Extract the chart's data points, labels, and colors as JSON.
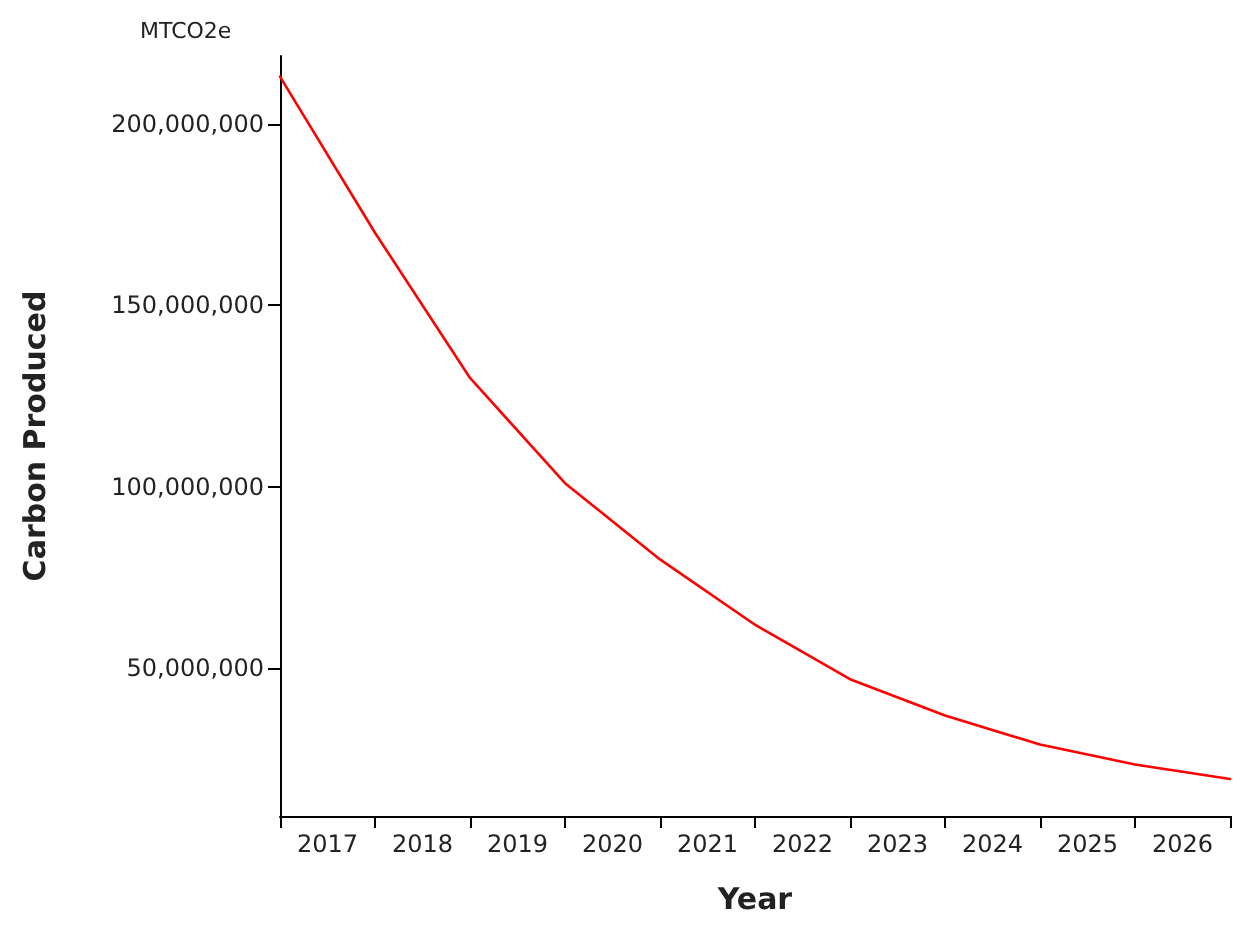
{
  "chart_data": {
    "type": "line",
    "xlabel": "Year",
    "ylabel": "Carbon Produced",
    "annotations": [
      "MTCO2e"
    ],
    "x": [
      2017,
      2018,
      2019,
      2020,
      2021,
      2022,
      2023,
      2024,
      2025,
      2026,
      2027
    ],
    "series": [
      {
        "color": "#ff0000",
        "values": [
          213000000,
          170000000,
          130000000,
          101000000,
          80000000,
          62000000,
          47000000,
          37000000,
          29000000,
          23500000,
          19500000
        ]
      }
    ],
    "xlim": [
      2017,
      2027
    ],
    "xticks": [
      {
        "value": 2017,
        "label": null
      },
      {
        "value": 2017.5,
        "label": "2017"
      },
      {
        "value": 2018,
        "label": null
      },
      {
        "value": 2018.5,
        "label": "2018"
      },
      {
        "value": 2019,
        "label": null
      },
      {
        "value": 2019.5,
        "label": "2019"
      },
      {
        "value": 2020,
        "label": null
      },
      {
        "value": 2020.5,
        "label": "2020"
      },
      {
        "value": 2021,
        "label": null
      },
      {
        "value": 2021.5,
        "label": "2021"
      },
      {
        "value": 2022,
        "label": null
      },
      {
        "value": 2022.5,
        "label": "2022"
      },
      {
        "value": 2023,
        "label": null
      },
      {
        "value": 2023.5,
        "label": "2023"
      },
      {
        "value": 2024,
        "label": null
      },
      {
        "value": 2024.5,
        "label": "2024"
      },
      {
        "value": 2025,
        "label": null
      },
      {
        "value": 2025.5,
        "label": "2025"
      },
      {
        "value": 2026,
        "label": null
      },
      {
        "value": 2026.5,
        "label": "2026"
      },
      {
        "value": 2027,
        "label": null
      }
    ],
    "ylim": [
      9300000,
      218700000
    ],
    "yticks": [
      {
        "value": 50000000,
        "label": "50,000,000"
      },
      {
        "value": 100000000,
        "label": "100,000,000"
      },
      {
        "value": 150000000,
        "label": "150,000,000"
      },
      {
        "value": 200000000,
        "label": "200,000,000"
      }
    ],
    "grid": false,
    "marker": "none",
    "line_style": "solid"
  }
}
